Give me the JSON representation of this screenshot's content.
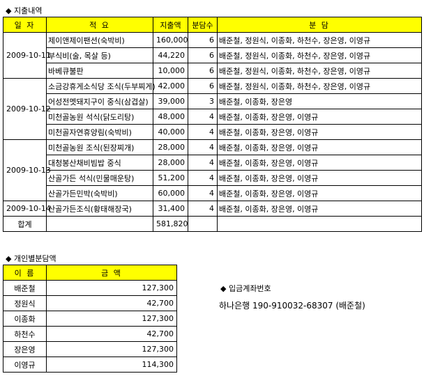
{
  "expenses": {
    "title": "◆ 지출내역",
    "headers": [
      "일 자",
      "적 요",
      "지출액",
      "분담수",
      "분 담"
    ],
    "groups": [
      {
        "date": "2009-10-11",
        "items": [
          {
            "desc": "제이앤제이팬션(숙박비)",
            "amount": "160,000",
            "count": "6",
            "share": "배준철, 정원식, 이종화, 하천수, 장은영, 이영규"
          },
          {
            "desc": "부식비(술, 목살 등)",
            "amount": "44,220",
            "count": "6",
            "share": "배준철, 정원식, 이종화, 하천수, 장은영, 이영규"
          },
          {
            "desc": "바베큐불판",
            "amount": "10,000",
            "count": "6",
            "share": "배준철, 정원식, 이종화, 하천수, 장은영, 이영규"
          }
        ]
      },
      {
        "date": "2009-10-12",
        "items": [
          {
            "desc": "소금강휴게소식당 조식(두부찌게)",
            "amount": "42,000",
            "count": "6",
            "share": "배준철, 정원식, 이종화, 하천수, 장은영, 이영규"
          },
          {
            "desc": "어성전멧돼지구이 중식(삼겹살)",
            "amount": "39,000",
            "count": "3",
            "share": "배준철, 이종화, 장은영"
          },
          {
            "desc": "미천골농원 석식(닭도리탕)",
            "amount": "48,000",
            "count": "4",
            "share": "배준철, 이종화, 장은영, 이영규"
          },
          {
            "desc": "미천골자연휴양림(숙박비)",
            "amount": "40,000",
            "count": "4",
            "share": "배준철, 이종화, 장은영, 이영규"
          }
        ]
      },
      {
        "date": "2009-10-13",
        "items": [
          {
            "desc": "미천골농원 조식(된장찌개)",
            "amount": "28,000",
            "count": "4",
            "share": "배준철, 이종화, 장은영, 이영규"
          },
          {
            "desc": "대청봉산채비빔밥 중식",
            "amount": "28,000",
            "count": "4",
            "share": "배준철, 이종화, 장은영, 이영규"
          },
          {
            "desc": "산골가든 석식(민물매운탕)",
            "amount": "51,200",
            "count": "4",
            "share": "배준철, 이종화, 장은영, 이영규"
          },
          {
            "desc": "산골가든민박(숙박비)",
            "amount": "60,000",
            "count": "4",
            "share": "배준철, 이종화, 장은영, 이영규"
          }
        ]
      },
      {
        "date": "2009-10-14",
        "items": [
          {
            "desc": "산골가든조식(황태해장국)",
            "amount": "31,400",
            "count": "4",
            "share": "배준철, 이종화, 장은영, 이영규"
          }
        ]
      }
    ],
    "total_label": "합계",
    "total_amount": "581,820"
  },
  "per_person": {
    "title": "◆ 개인별분담액",
    "headers": [
      "이 름",
      "금 액"
    ],
    "rows": [
      {
        "name": "배준철",
        "amount": "127,300"
      },
      {
        "name": "정원식",
        "amount": "42,700"
      },
      {
        "name": "이종화",
        "amount": "127,300"
      },
      {
        "name": "하천수",
        "amount": "42,700"
      },
      {
        "name": "장은영",
        "amount": "127,300"
      },
      {
        "name": "이영규",
        "amount": "114,300"
      }
    ]
  },
  "account": {
    "title": "◆ 입금계좌번호",
    "value": "하나은행 190-910032-68307 (배준철)"
  },
  "colors": {
    "header_bg": "#ffff00"
  }
}
